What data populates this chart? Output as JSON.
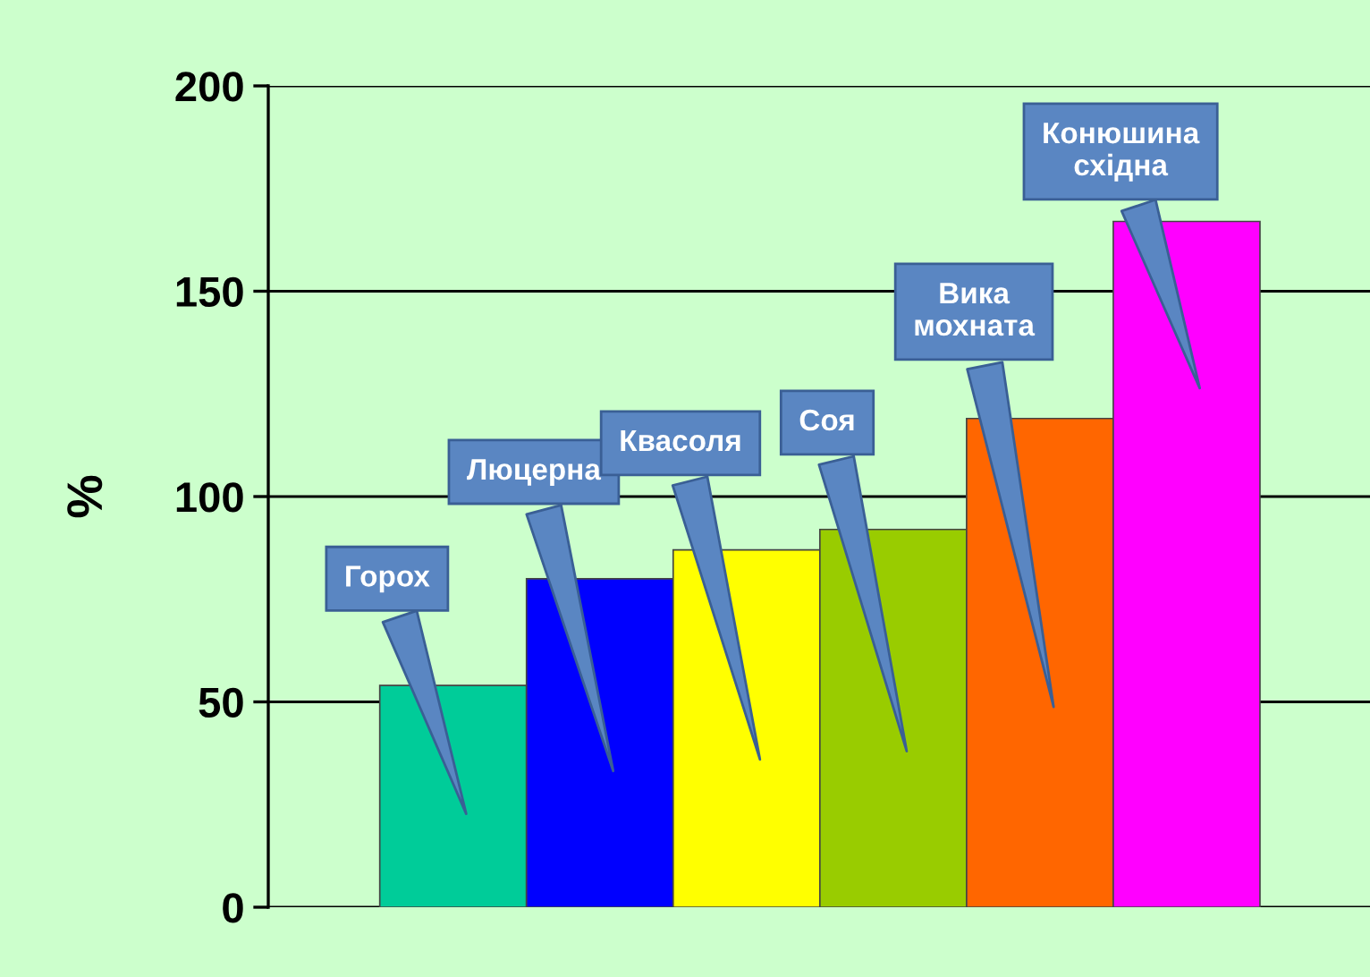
{
  "chart_data": {
    "type": "bar",
    "ylabel": "%",
    "categories": [
      "Горох",
      "Люцерна",
      "Квасоля",
      "Соя",
      "Вика\nмохната",
      "Конюшина\nсхідна"
    ],
    "values": [
      54,
      80,
      87,
      92,
      119,
      167
    ],
    "colors": [
      "#00cc99",
      "#0000ff",
      "#ffff00",
      "#99cc00",
      "#ff6600",
      "#ff00ff"
    ],
    "ylim": [
      0,
      200
    ],
    "yticks": [
      0,
      50,
      100,
      150,
      200
    ],
    "grid": "y",
    "legend": false
  }
}
